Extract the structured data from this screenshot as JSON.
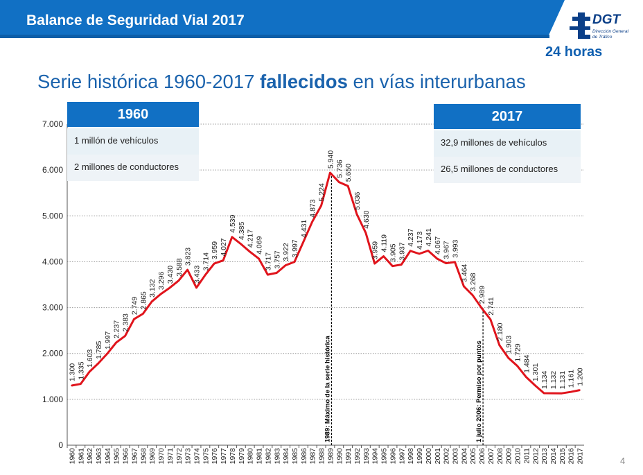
{
  "header": {
    "banner_title": "Balance de Seguridad Vial 2017",
    "logo_text": "DGT",
    "logo_sub1": "Dirección General",
    "logo_sub2": "de Tráfico",
    "badge": "24 horas"
  },
  "heading": {
    "part1": "Serie histórica 1960-2017 ",
    "bold": "fallecidos",
    "part2": " en vías interurbanas"
  },
  "box_1960": {
    "title": "1960",
    "rows": [
      "1 millón de vehículos",
      "2 millones de conductores"
    ]
  },
  "box_2017": {
    "title": "2017",
    "rows": [
      "32,9 millones de vehículos",
      "26,5 millones de conductores"
    ]
  },
  "page_number": "4",
  "colors": {
    "banner": "#1170c4",
    "line": "#e0141c",
    "heading": "#1b63ad"
  },
  "chart_data": {
    "type": "line",
    "title": "",
    "xlabel": "",
    "ylabel": "",
    "ylim": [
      0,
      7000
    ],
    "yticks": [
      "0",
      "1.000",
      "2.000",
      "3.000",
      "4.000",
      "5.000",
      "6.000",
      "7.000"
    ],
    "grid": true,
    "x": [
      "1960",
      "1961",
      "1962",
      "1963",
      "1964",
      "1965",
      "1966",
      "1967",
      "1968",
      "1969",
      "1970",
      "1971",
      "1972",
      "1973",
      "1974",
      "1975",
      "1976",
      "1977",
      "1978",
      "1979",
      "1980",
      "1981",
      "1982",
      "1983",
      "1984",
      "1985",
      "1986",
      "1987",
      "1988",
      "1989",
      "1990",
      "1991",
      "1992",
      "1993",
      "1994",
      "1995",
      "1996",
      "1997",
      "1998",
      "1999",
      "2000",
      "2001",
      "2002",
      "2003",
      "2004",
      "2005",
      "2006",
      "2007",
      "2008",
      "2009",
      "2010",
      "2011",
      "2012",
      "2013",
      "2014",
      "2015",
      "2016",
      "2017"
    ],
    "values": [
      1300,
      1335,
      1603,
      1785,
      1997,
      2237,
      2383,
      2749,
      2865,
      3132,
      3296,
      3430,
      3588,
      3823,
      3433,
      3714,
      3959,
      4027,
      4539,
      4385,
      4217,
      4069,
      3717,
      3757,
      3922,
      3997,
      4431,
      4873,
      5224,
      5940,
      5736,
      5650,
      5036,
      4630,
      3959,
      4119,
      3905,
      3937,
      4237,
      4173,
      4241,
      4067,
      3967,
      3993,
      3464,
      3268,
      2989,
      2741,
      2180,
      1903,
      1729,
      1484,
      1301,
      1134,
      1132,
      1131,
      1161,
      1200
    ],
    "labels": [
      "1.300",
      "1.335",
      "1.603",
      "1.785",
      "1.997",
      "2.237",
      "2.383",
      "2.749",
      "2.865",
      "3.132",
      "3.296",
      "3.430",
      "3.588",
      "3.823",
      "3.433",
      "3.714",
      "3.959",
      "4.027",
      "4.539",
      "4.385",
      "4.217",
      "4.069",
      "3.717",
      "3.757",
      "3.922",
      "3.997",
      "4.431",
      "4.873",
      "5.224",
      "5.940",
      "5.736",
      "5.650",
      "5.036",
      "4.630",
      "3.959",
      "4.119",
      "3.905",
      "3.937",
      "4.237",
      "4.173",
      "4.241",
      "4.067",
      "3.967",
      "3.993",
      "3.464",
      "3.268",
      "2.989",
      "2.741",
      "2.180",
      "1.903",
      "1.729",
      "1.484",
      "1.301",
      "1.134",
      "1.132",
      "1.131",
      "1.161",
      "1.200"
    ],
    "annotations": [
      {
        "year": "1989",
        "text": "1989: Máximo de la serie histórica"
      },
      {
        "year": "2006",
        "text": "1 julio 2006: Permiso por puntos"
      }
    ]
  }
}
